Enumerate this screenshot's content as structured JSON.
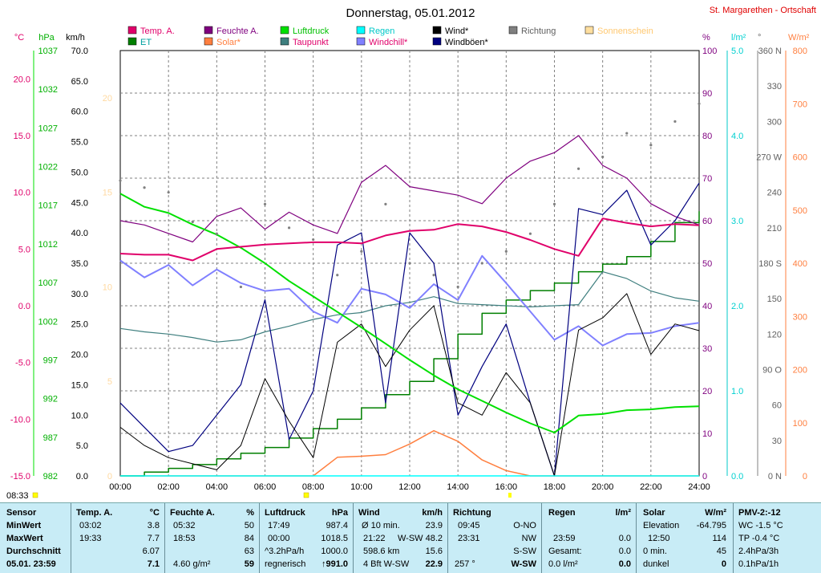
{
  "title": "Donnerstag, 05.01.2012",
  "station": "St. Margarethen - Ortschaft",
  "time_marker": "08:33",
  "colors": {
    "temp": "#e0006a",
    "feuchte": "#7f007f",
    "luftdruck": "#00e000",
    "taupunkt": "#3f7f7f",
    "regen": "#00ffff",
    "et": "#007f00",
    "solar": "#ff7f3f",
    "windchill": "#8080ff",
    "wind": "#000000",
    "windboeen": "#00007f",
    "richtung": "#808080",
    "sonnenschein": "#ffdfa0"
  },
  "legend": [
    {
      "label": "Temp. A.",
      "color": "#e0006a",
      "text_color": "#e0006a",
      "key": "temp"
    },
    {
      "label": "Feuchte A.",
      "color": "#7f007f",
      "text_color": "#7f007f",
      "key": "feuchte"
    },
    {
      "label": "Luftdruck",
      "color": "#00e000",
      "text_color": "#00c000",
      "key": "luftdruck"
    },
    {
      "label": "Regen",
      "color": "#00ffff",
      "text_color": "#00c8c8",
      "key": "regen"
    },
    {
      "label": "Wind*",
      "color": "#000000",
      "text_color": "#000000",
      "key": "wind"
    },
    {
      "label": "Richtung",
      "color": "#808080",
      "text_color": "#606060",
      "key": "richtung"
    },
    {
      "label": "Sonnenschein",
      "color": "#ffdfa0",
      "text_color": "#ffc870",
      "key": "sonnenschein"
    },
    {
      "label": "ET",
      "color": "#007f00",
      "text_color": "#00a0a0",
      "key": "et"
    },
    {
      "label": "Solar*",
      "color": "#ff7f3f",
      "text_color": "#ff7f3f",
      "key": "solar"
    },
    {
      "label": "Taupunkt",
      "color": "#3f7f7f",
      "text_color": "#e0006a",
      "key": "taupunkt"
    },
    {
      "label": "Windchill*",
      "color": "#8080ff",
      "text_color": "#e0006a",
      "key": "windchill"
    },
    {
      "label": "Windböen*",
      "color": "#00007f",
      "text_color": "#000000",
      "key": "windboeen"
    }
  ],
  "axes": {
    "temp": {
      "unit": "°C",
      "ticks": [
        "20.0",
        "15.0",
        "10.0",
        "5.0",
        "0.0",
        "-5.0",
        "-10.0",
        "-15.0"
      ],
      "range": [
        -15,
        22.5
      ]
    },
    "pressure": {
      "unit": "hPa",
      "ticks": [
        "1037",
        "1032",
        "1027",
        "1022",
        "1017",
        "1012",
        "1007",
        "1002",
        "997",
        "992",
        "987",
        "982"
      ],
      "range": [
        982,
        1037
      ]
    },
    "wind": {
      "unit": "km/h",
      "ticks": [
        "70.0",
        "65.0",
        "60.0",
        "55.0",
        "50.0",
        "45.0",
        "40.0",
        "35.0",
        "30.0",
        "25.0",
        "20.0",
        "15.0",
        "10.0",
        "5.0",
        "0.0"
      ],
      "range": [
        0,
        70
      ]
    },
    "hours": {
      "unit": "",
      "ticks": [
        "20",
        "15",
        "10",
        "5",
        "0"
      ]
    },
    "humidity": {
      "unit": "%",
      "ticks": [
        "100",
        "90",
        "80",
        "70",
        "60",
        "50",
        "40",
        "30",
        "20",
        "10",
        "0"
      ],
      "range": [
        0,
        100
      ]
    },
    "rain": {
      "unit": "l/m²",
      "ticks": [
        "5.0",
        "4.0",
        "3.0",
        "2.0",
        "1.0",
        "0.0"
      ],
      "range": [
        0,
        5
      ]
    },
    "direction": {
      "unit": "°",
      "ticks": [
        "360 N",
        "330",
        "300",
        "270 W",
        "240",
        "210",
        "180 S",
        "150",
        "120",
        "90 O",
        "60",
        "30",
        "0 N"
      ],
      "range": [
        0,
        360
      ]
    },
    "solar": {
      "unit": "W/m²",
      "ticks": [
        "800",
        "700",
        "600",
        "500",
        "400",
        "300",
        "200",
        "100",
        "0"
      ],
      "range": [
        0,
        800
      ]
    },
    "time": {
      "ticks": [
        "00:00",
        "02:00",
        "04:00",
        "06:00",
        "08:00",
        "10:00",
        "12:00",
        "14:00",
        "16:00",
        "18:00",
        "20:00",
        "22:00",
        "24:00"
      ]
    }
  },
  "chart_data": {
    "type": "line",
    "title": "Donnerstag, 05.01.2012",
    "x": [
      "00:00",
      "01:00",
      "02:00",
      "03:00",
      "04:00",
      "05:00",
      "06:00",
      "07:00",
      "08:00",
      "09:00",
      "10:00",
      "11:00",
      "12:00",
      "13:00",
      "14:00",
      "15:00",
      "16:00",
      "17:00",
      "18:00",
      "19:00",
      "20:00",
      "21:00",
      "22:00",
      "23:00",
      "24:00"
    ],
    "series": [
      {
        "name": "Temp. A.",
        "axis": "temp",
        "values": [
          4.6,
          4.5,
          4.5,
          4.0,
          5.0,
          5.2,
          5.4,
          5.5,
          5.6,
          5.6,
          5.5,
          6.2,
          6.6,
          6.7,
          7.2,
          7.0,
          6.5,
          5.8,
          5.0,
          4.4,
          7.7,
          7.3,
          7.0,
          7.2,
          7.1
        ]
      },
      {
        "name": "Feuchte A.",
        "axis": "humidity",
        "values": [
          60,
          59,
          57,
          55,
          61,
          63,
          58,
          62,
          59,
          57,
          69,
          73,
          68,
          67,
          66,
          64,
          70,
          74,
          76,
          80,
          73,
          70,
          64,
          61,
          59
        ]
      },
      {
        "name": "Luftdruck",
        "axis": "pressure",
        "values": [
          1018.5,
          1016.8,
          1016.0,
          1014.5,
          1013.2,
          1011.5,
          1009.5,
          1007.2,
          1005.2,
          1003.2,
          1001.2,
          999.1,
          997.0,
          995.0,
          993.2,
          991.7,
          990.2,
          988.8,
          987.6,
          989.8,
          990.0,
          990.5,
          990.6,
          990.9,
          991.0
        ]
      },
      {
        "name": "Taupunkt",
        "axis": "temp",
        "values": [
          -2.0,
          -2.3,
          -2.5,
          -2.8,
          -3.2,
          -3.0,
          -2.3,
          -1.8,
          -1.2,
          -0.8,
          -0.6,
          0.0,
          0.3,
          0.8,
          0.2,
          0.1,
          0.0,
          -0.1,
          0.0,
          0.1,
          3.0,
          2.4,
          1.3,
          0.7,
          0.4
        ]
      },
      {
        "name": "Windchill*",
        "axis": "temp",
        "values": [
          4.0,
          2.5,
          3.6,
          1.8,
          3.2,
          2.0,
          1.3,
          1.5,
          -0.5,
          -1.5,
          1.5,
          1.0,
          -0.2,
          1.9,
          0.5,
          4.4,
          2.0,
          -0.5,
          -3.0,
          -1.8,
          -3.5,
          -2.5,
          -2.4,
          -1.8,
          -1.5
        ]
      },
      {
        "name": "Wind*",
        "axis": "wind",
        "values": [
          8,
          5,
          3,
          2,
          1,
          5,
          16,
          9,
          3,
          22,
          25,
          18,
          24,
          28,
          12,
          10,
          17,
          12,
          0,
          24,
          26,
          30,
          20,
          25,
          23.9
        ]
      },
      {
        "name": "Windböen*",
        "axis": "wind",
        "values": [
          12,
          8,
          4,
          5,
          10,
          15,
          29,
          6,
          14,
          38,
          40,
          12,
          40,
          35,
          10,
          18,
          25,
          12,
          0,
          44,
          43,
          47,
          38,
          42,
          48.2
        ]
      },
      {
        "name": "Regen",
        "axis": "rain",
        "values": [
          0,
          0,
          0,
          0,
          0,
          0,
          0,
          0,
          0,
          0,
          0,
          0,
          0,
          0,
          0,
          0,
          0,
          0,
          0,
          0,
          0,
          0,
          0,
          0,
          0
        ]
      },
      {
        "name": "ET",
        "axis": "hours",
        "values": [
          0.0,
          0.2,
          0.4,
          0.6,
          0.9,
          1.2,
          1.5,
          2.0,
          2.5,
          3.0,
          3.6,
          4.3,
          5.0,
          6.2,
          7.5,
          8.6,
          9.3,
          9.8,
          10.2,
          10.8,
          11.2,
          11.6,
          12.4,
          13.4,
          14.0
        ]
      },
      {
        "name": "Solar*",
        "axis": "solar",
        "values": [
          0,
          0,
          0,
          0,
          0,
          0,
          0,
          0,
          0,
          35,
          37,
          40,
          60,
          85,
          65,
          30,
          10,
          0,
          0,
          0,
          0,
          0,
          0,
          0,
          0
        ]
      },
      {
        "name": "Richtung",
        "axis": "direction",
        "values": [
          250,
          244,
          240,
          215,
          205,
          160,
          230,
          210,
          200,
          170,
          190,
          230,
          180,
          170,
          160,
          180,
          190,
          205,
          230,
          260,
          270,
          290,
          280,
          300,
          315
        ]
      }
    ],
    "xlabel": "",
    "ylabel": ""
  },
  "stats": {
    "sensor": {
      "h1": "Sensor",
      "min": "MinWert",
      "max": "MaxWert",
      "avg": "Durchschnitt",
      "date": "05.01. 23:59"
    },
    "temp": {
      "h1": "Temp. A.",
      "h2": "°C",
      "min_t": "03:02",
      "min_v": "3.8",
      "max_t": "19:33",
      "max_v": "7.7",
      "avg_v": "6.07",
      "cur_v": "7.1"
    },
    "feuchte": {
      "h1": "Feuchte A.",
      "h2": "%",
      "min_t": "05:32",
      "min_v": "50",
      "max_t": "18:53",
      "max_v": "84",
      "avg_v": "63",
      "cur_l": "4.60 g/m²",
      "cur_v": "59"
    },
    "luftdruck": {
      "h1": "Luftdruck",
      "h2": "hPa",
      "min_t": "17:49",
      "min_v": "987.4",
      "max_t": "00:00",
      "max_v": "1018.5",
      "avg_l": "^3.2hPa/h",
      "avg_v": "1000.0",
      "cur_l": "regnerisch",
      "cur_v": "↑991.0"
    },
    "wind": {
      "h1": "Wind",
      "h2": "km/h",
      "r1_l": "Ø 10 min.",
      "r1_v": "23.9",
      "r2_l": "21:22",
      "r2_m": "W-SW",
      "r2_v": "48.2",
      "r3_l": "598.6 km",
      "r3_v": "15.6",
      "r4_l": "4 Bft W-SW",
      "r4_v": "22.9"
    },
    "richtung": {
      "h1": "Richtung",
      "r1_l": "09:45",
      "r1_v": "O-NO",
      "r2_l": "23:31",
      "r2_v": "NW",
      "r3_v": "S-SW",
      "r4_l": "257 °",
      "r4_v": "W-SW"
    },
    "regen": {
      "h1": "Regen",
      "h2": "l/m²",
      "r2_l": "23:59",
      "r2_v": "0.0",
      "r3_l": "Gesamt:",
      "r3_v": "0.0",
      "r4_l": "0.0 l/m²",
      "r4_v": "0.0"
    },
    "solar": {
      "h1": "Solar",
      "h2": "W/m²",
      "r1_l": "Elevation",
      "r1_v": "-64.795",
      "r2_l": "12:50",
      "r2_v": "114",
      "r3_l": "0 min.",
      "r3_v": "45",
      "r4_l": "dunkel",
      "r4_v": "0"
    },
    "pmv": {
      "h1": "PMV-2:-12",
      "r1": "WC -1.5 °C",
      "r2": "TP -0.4 °C",
      "r3": "2.4hPa/3h",
      "r4": "0.1hPa/1h"
    }
  }
}
